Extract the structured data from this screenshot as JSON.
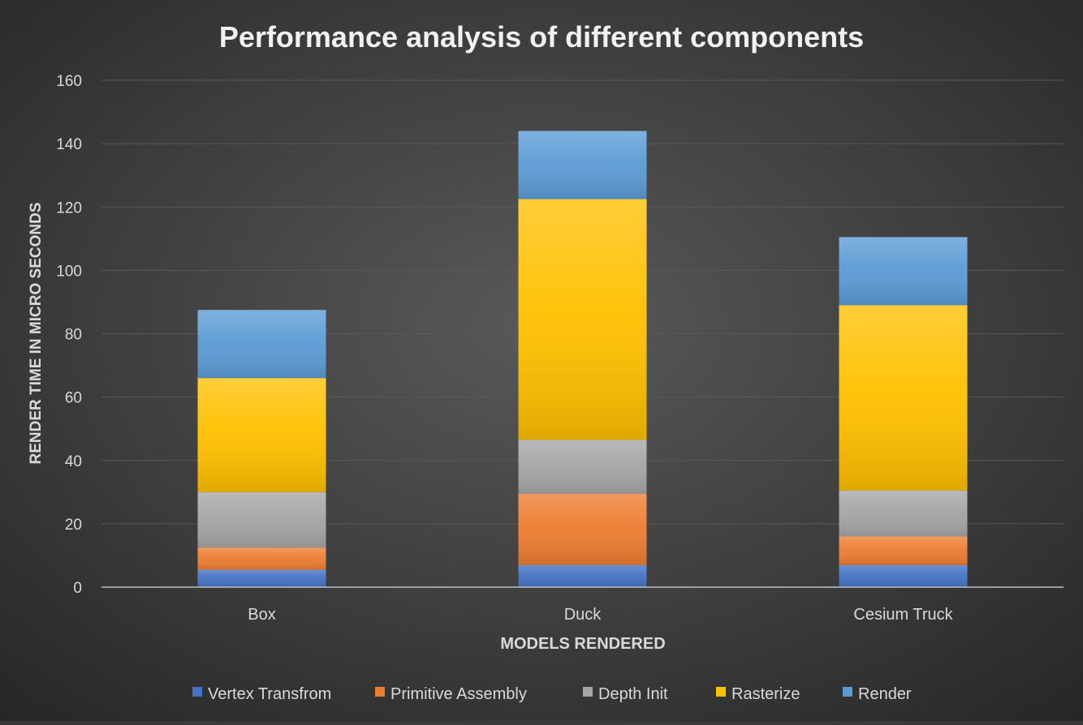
{
  "chart_data": {
    "type": "bar",
    "stacked": true,
    "title": "Performance analysis of different components",
    "xlabel": "MODELS RENDERED",
    "ylabel": "RENDER TIME IN MICRO SECONDS",
    "ylim": [
      0,
      160
    ],
    "yticks": [
      0,
      20,
      40,
      60,
      80,
      100,
      120,
      140,
      160
    ],
    "categories": [
      "Box",
      "Duck",
      "Cesium Truck"
    ],
    "series": [
      {
        "name": "Vertex Transfrom",
        "color": "#4472c4",
        "values": [
          5.5,
          7,
          7
        ]
      },
      {
        "name": "Primitive Assembly",
        "color": "#ed7d31",
        "values": [
          7,
          22.5,
          9
        ]
      },
      {
        "name": "Depth Init",
        "color": "#a5a5a5",
        "values": [
          17.5,
          17,
          14.5
        ]
      },
      {
        "name": "Rasterize",
        "color": "#ffc000",
        "values": [
          36,
          76,
          58.5
        ]
      },
      {
        "name": "Render",
        "color": "#5b9bd5",
        "values": [
          21.5,
          21.5,
          21.5
        ]
      }
    ],
    "grid": true,
    "legend_position": "bottom",
    "background_color": "#404040",
    "text_color": "#d9d9d9",
    "title_color": "#f2f2f2"
  }
}
